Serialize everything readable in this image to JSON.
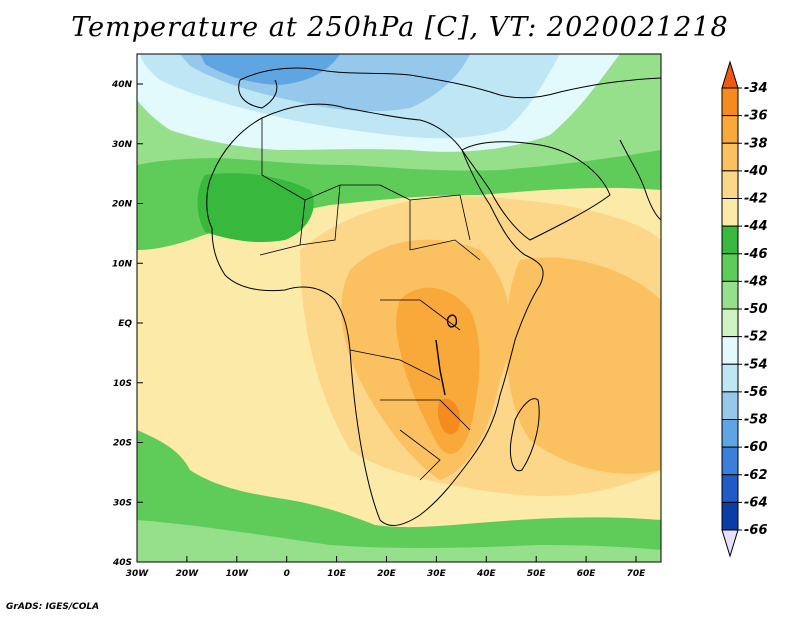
{
  "title": "Temperature at 250hPa [C], VT: 2020021218",
  "footer": "GrADS: IGES/COLA",
  "lat_labels": [
    "40N",
    "30N",
    "20N",
    "10N",
    "EQ",
    "10S",
    "20S",
    "30S",
    "40S"
  ],
  "lon_labels": [
    "30W",
    "20W",
    "10W",
    "0",
    "10E",
    "20E",
    "30E",
    "40E",
    "50E",
    "60E",
    "70E"
  ],
  "colorbar": {
    "labels": [
      "-34",
      "-36",
      "-38",
      "-40",
      "-42",
      "-44",
      "-46",
      "-48",
      "-50",
      "-52",
      "-54",
      "-56",
      "-58",
      "-60",
      "-62",
      "-64",
      "-66"
    ],
    "colors": [
      "#f05a10",
      "#f58a1e",
      "#f9a83a",
      "#fbc060",
      "#fcd78a",
      "#fbeaa8",
      "#38b83c",
      "#5fcc5a",
      "#96e08c",
      "#cdf4c2",
      "#e2fafc",
      "#bfe6f5",
      "#96c8ec",
      "#5fa5e2",
      "#3a7fd8",
      "#1f5cc8",
      "#0b3da6",
      "#0a1a78"
    ]
  },
  "colors": {
    "ocean_warm": "#fbeaa8",
    "land_warm": "#fbc060",
    "hot_core": "#f9a83a",
    "green": "#5fcc5a",
    "dark_green": "#38b83c",
    "light_green": "#96e08c",
    "pale_cyan": "#e2fafc",
    "light_blue": "#bfe6f5",
    "blue": "#96c8ec",
    "deep_blue": "#5fa5e2"
  }
}
